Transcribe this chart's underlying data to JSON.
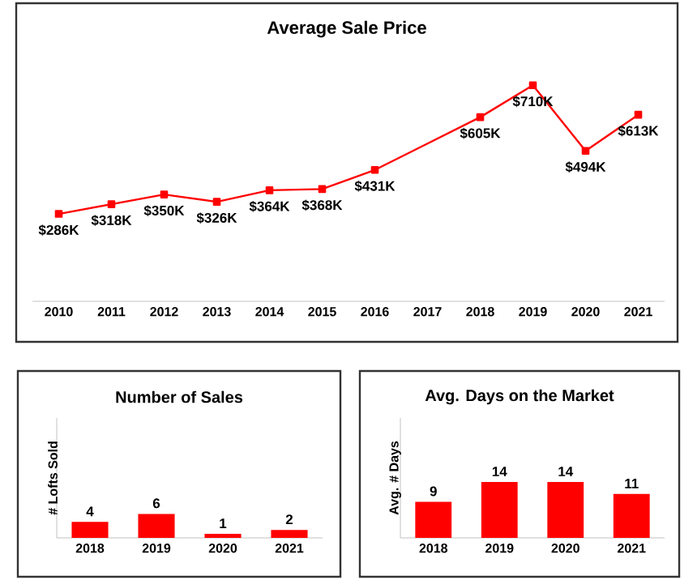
{
  "chart_data": [
    {
      "type": "line",
      "title": "Average Sale Price",
      "categories": [
        "2010",
        "2011",
        "2012",
        "2013",
        "2014",
        "2015",
        "2016",
        "2017",
        "2018",
        "2019",
        "2020",
        "2021"
      ],
      "values": [
        286,
        318,
        350,
        326,
        364,
        368,
        431,
        null,
        605,
        710,
        494,
        613
      ],
      "value_labels": [
        "$286K",
        "$318K",
        "$350K",
        "$326K",
        "$364K",
        "$368K",
        "$431K",
        null,
        "$605K",
        "$710K",
        "$494K",
        "$613K"
      ],
      "color": "#ff0000",
      "marker": "square",
      "line_style": "solid",
      "tick_labels": "x"
    },
    {
      "type": "bar",
      "title": "Number of Sales",
      "ylabel": "# Lofts Sold",
      "categories": [
        "2018",
        "2019",
        "2020",
        "2021"
      ],
      "values": [
        4,
        6,
        1,
        2
      ],
      "color": "#ff0000",
      "data_labels": true,
      "ylim": [
        0,
        30
      ],
      "tick_labels": "x"
    },
    {
      "type": "bar",
      "title": "Avg. Days on the Market",
      "ylabel": "Avg. # Days",
      "categories": [
        "2018",
        "2019",
        "2020",
        "2021"
      ],
      "values": [
        9,
        14,
        14,
        11
      ],
      "color": "#ff0000",
      "data_labels": true,
      "ylim": [
        0,
        30
      ],
      "tick_labels": "x"
    }
  ]
}
